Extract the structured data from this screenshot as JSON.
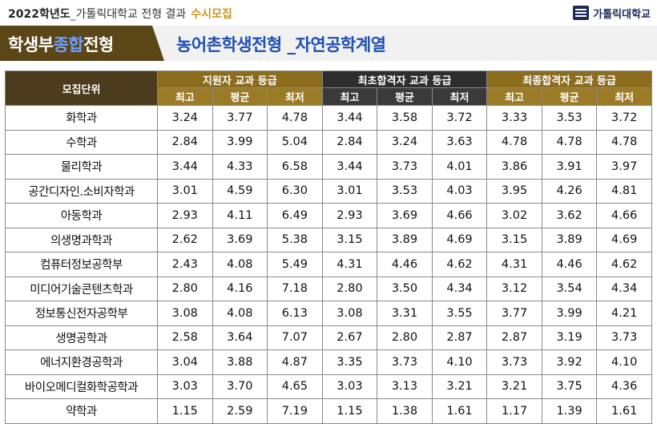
{
  "header": {
    "year_label": "2022학년도",
    "separator": "_",
    "subtitle": "가톨릭대학교 전형 결과",
    "tag": "수시모집",
    "logo_text": "가톨릭대학교"
  },
  "title": {
    "left_part1": "학생부",
    "left_highlight": "종합",
    "left_part2": "전형",
    "right": "농어촌학생전형 _자연공학계열"
  },
  "table": {
    "unit_header": "모집단위",
    "groups": [
      "지원자 교과 등급",
      "최초합격자 교과 등급",
      "최종합격자 교과 등급"
    ],
    "sub_headers": [
      "최고",
      "평균",
      "최저",
      "최고",
      "평균",
      "최저",
      "최고",
      "평균",
      "최저"
    ],
    "rows": [
      {
        "name": "화학과",
        "values": [
          "3.24",
          "3.77",
          "4.78",
          "3.44",
          "3.58",
          "3.72",
          "3.33",
          "3.53",
          "3.72"
        ]
      },
      {
        "name": "수학과",
        "values": [
          "2.84",
          "3.99",
          "5.04",
          "2.84",
          "3.24",
          "3.63",
          "4.78",
          "4.78",
          "4.78"
        ]
      },
      {
        "name": "물리학과",
        "values": [
          "3.44",
          "4.33",
          "6.58",
          "3.44",
          "3.73",
          "4.01",
          "3.86",
          "3.91",
          "3.97"
        ]
      },
      {
        "name": "공간디자인.소비자학과",
        "values": [
          "3.01",
          "4.59",
          "6.30",
          "3.01",
          "3.53",
          "4.03",
          "3.95",
          "4.26",
          "4.81"
        ]
      },
      {
        "name": "아동학과",
        "values": [
          "2.93",
          "4.11",
          "6.49",
          "2.93",
          "3.69",
          "4.66",
          "3.02",
          "3.62",
          "4.66"
        ]
      },
      {
        "name": "의생명과학과",
        "values": [
          "2.62",
          "3.69",
          "5.38",
          "3.15",
          "3.89",
          "4.69",
          "3.15",
          "3.89",
          "4.69"
        ]
      },
      {
        "name": "컴퓨터정보공학부",
        "values": [
          "2.43",
          "4.08",
          "5.49",
          "4.31",
          "4.46",
          "4.62",
          "4.31",
          "4.46",
          "4.62"
        ]
      },
      {
        "name": "미디어기술콘텐츠학과",
        "values": [
          "2.80",
          "4.16",
          "7.18",
          "2.80",
          "3.50",
          "4.34",
          "3.12",
          "3.54",
          "4.34"
        ]
      },
      {
        "name": "정보통신전자공학부",
        "values": [
          "3.08",
          "4.08",
          "6.13",
          "3.08",
          "3.31",
          "3.55",
          "3.77",
          "3.99",
          "4.21"
        ]
      },
      {
        "name": "생명공학과",
        "values": [
          "2.58",
          "3.64",
          "7.07",
          "2.67",
          "2.80",
          "2.87",
          "2.87",
          "3.19",
          "3.73"
        ]
      },
      {
        "name": "에너지환경공학과",
        "values": [
          "3.04",
          "3.88",
          "4.87",
          "3.35",
          "3.73",
          "4.10",
          "3.73",
          "3.92",
          "4.10"
        ]
      },
      {
        "name": "바이오메디컬화학공학과",
        "values": [
          "3.03",
          "3.70",
          "4.65",
          "3.03",
          "3.13",
          "3.21",
          "3.21",
          "3.75",
          "4.36"
        ]
      },
      {
        "name": "약학과",
        "values": [
          "1.15",
          "2.59",
          "7.19",
          "1.15",
          "1.38",
          "1.61",
          "1.17",
          "1.39",
          "1.61"
        ]
      }
    ]
  },
  "colors": {
    "title_left_bg": "#5a4617",
    "title_right_text": "#1e4fb2",
    "gold_header": "#8c6d1e",
    "dark_header": "#2e2e2e",
    "tag_color": "#c8961e"
  },
  "icons": {
    "logo": "university-emblem-icon"
  }
}
